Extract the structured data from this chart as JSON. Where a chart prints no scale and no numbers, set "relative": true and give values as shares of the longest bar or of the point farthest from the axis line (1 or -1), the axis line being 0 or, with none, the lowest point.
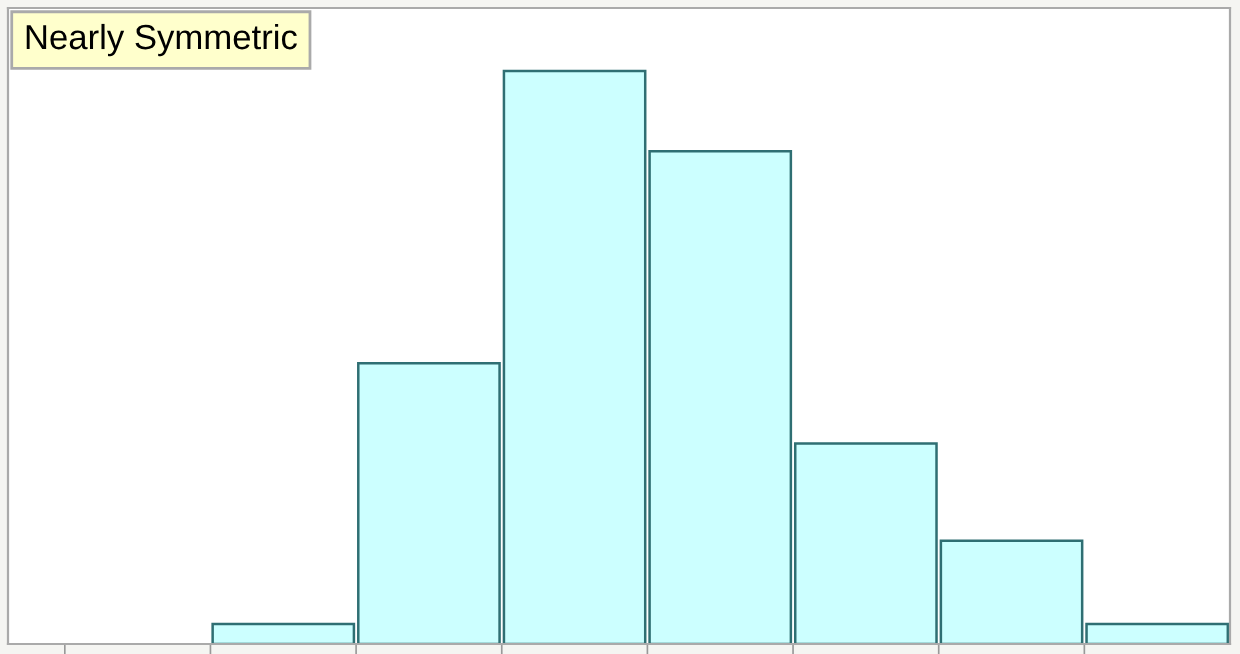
{
  "chart_data": {
    "type": "bar",
    "title": "Nearly Symmetric",
    "relative": true,
    "categories": [
      null,
      null,
      null,
      null,
      null,
      null,
      null
    ],
    "values": [
      0.035,
      0.49,
      1,
      0.86,
      0.35,
      0.18,
      0.035
    ],
    "color": "#ccffff",
    "grid": false,
    "legend": false
  }
}
